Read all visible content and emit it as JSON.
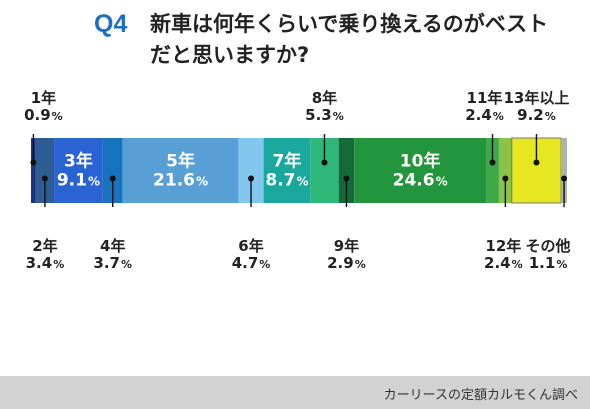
{
  "header": {
    "question_number": "Q4",
    "question_text": "新車は何年くらいで乗り換えるのがベストだと思いますか?"
  },
  "chart_data": {
    "type": "bar",
    "orientation": "horizontal-100%-stacked",
    "unit": "%",
    "segments": [
      {
        "label": "1年",
        "value": 0.9,
        "value_text": "0.9",
        "color": "#1f3480",
        "label_pos": "above-top",
        "outline": false
      },
      {
        "label": "2年",
        "value": 3.4,
        "value_text": "3.4",
        "color": "#2e5d93",
        "label_pos": "below",
        "outline": false
      },
      {
        "label": "3年",
        "value": 9.1,
        "value_text": "9.1",
        "color": "#2a63d2",
        "label_pos": "inside",
        "outline": false
      },
      {
        "label": "4年",
        "value": 3.7,
        "value_text": "3.7",
        "color": "#1873be",
        "label_pos": "below",
        "outline": false
      },
      {
        "label": "5年",
        "value": 21.6,
        "value_text": "21.6",
        "color": "#589fd6",
        "label_pos": "inside",
        "outline": false
      },
      {
        "label": "6年",
        "value": 4.7,
        "value_text": "4.7",
        "color": "#82c7ee",
        "label_pos": "below",
        "outline": false
      },
      {
        "label": "7年",
        "value": 8.7,
        "value_text": "8.7",
        "color": "#1aa89e",
        "label_pos": "inside",
        "outline": false
      },
      {
        "label": "8年",
        "value": 5.3,
        "value_text": "5.3",
        "color": "#2db87a",
        "label_pos": "above",
        "outline": false
      },
      {
        "label": "9年",
        "value": 2.9,
        "value_text": "2.9",
        "color": "#136b3a",
        "label_pos": "below",
        "outline": false
      },
      {
        "label": "10年",
        "value": 24.6,
        "value_text": "24.6",
        "color": "#22953d",
        "label_pos": "inside",
        "outline": false
      },
      {
        "label": "11年",
        "value": 2.4,
        "value_text": "2.4",
        "color": "#3fa948",
        "label_pos": "above",
        "outline": false
      },
      {
        "label": "12年",
        "value": 2.4,
        "value_text": "2.4",
        "color": "#8bc34a",
        "label_pos": "below",
        "outline": false
      },
      {
        "label": "13年以上",
        "value": 9.2,
        "value_text": "9.2",
        "color": "#e6e621",
        "label_pos": "above",
        "outline": true
      },
      {
        "label": "その他",
        "value": 1.1,
        "value_text": "1.1",
        "color": "#b0b0b0",
        "label_pos": "below",
        "outline": false
      }
    ]
  },
  "footer": {
    "source": "カーリースの定額カルモくん調べ"
  }
}
